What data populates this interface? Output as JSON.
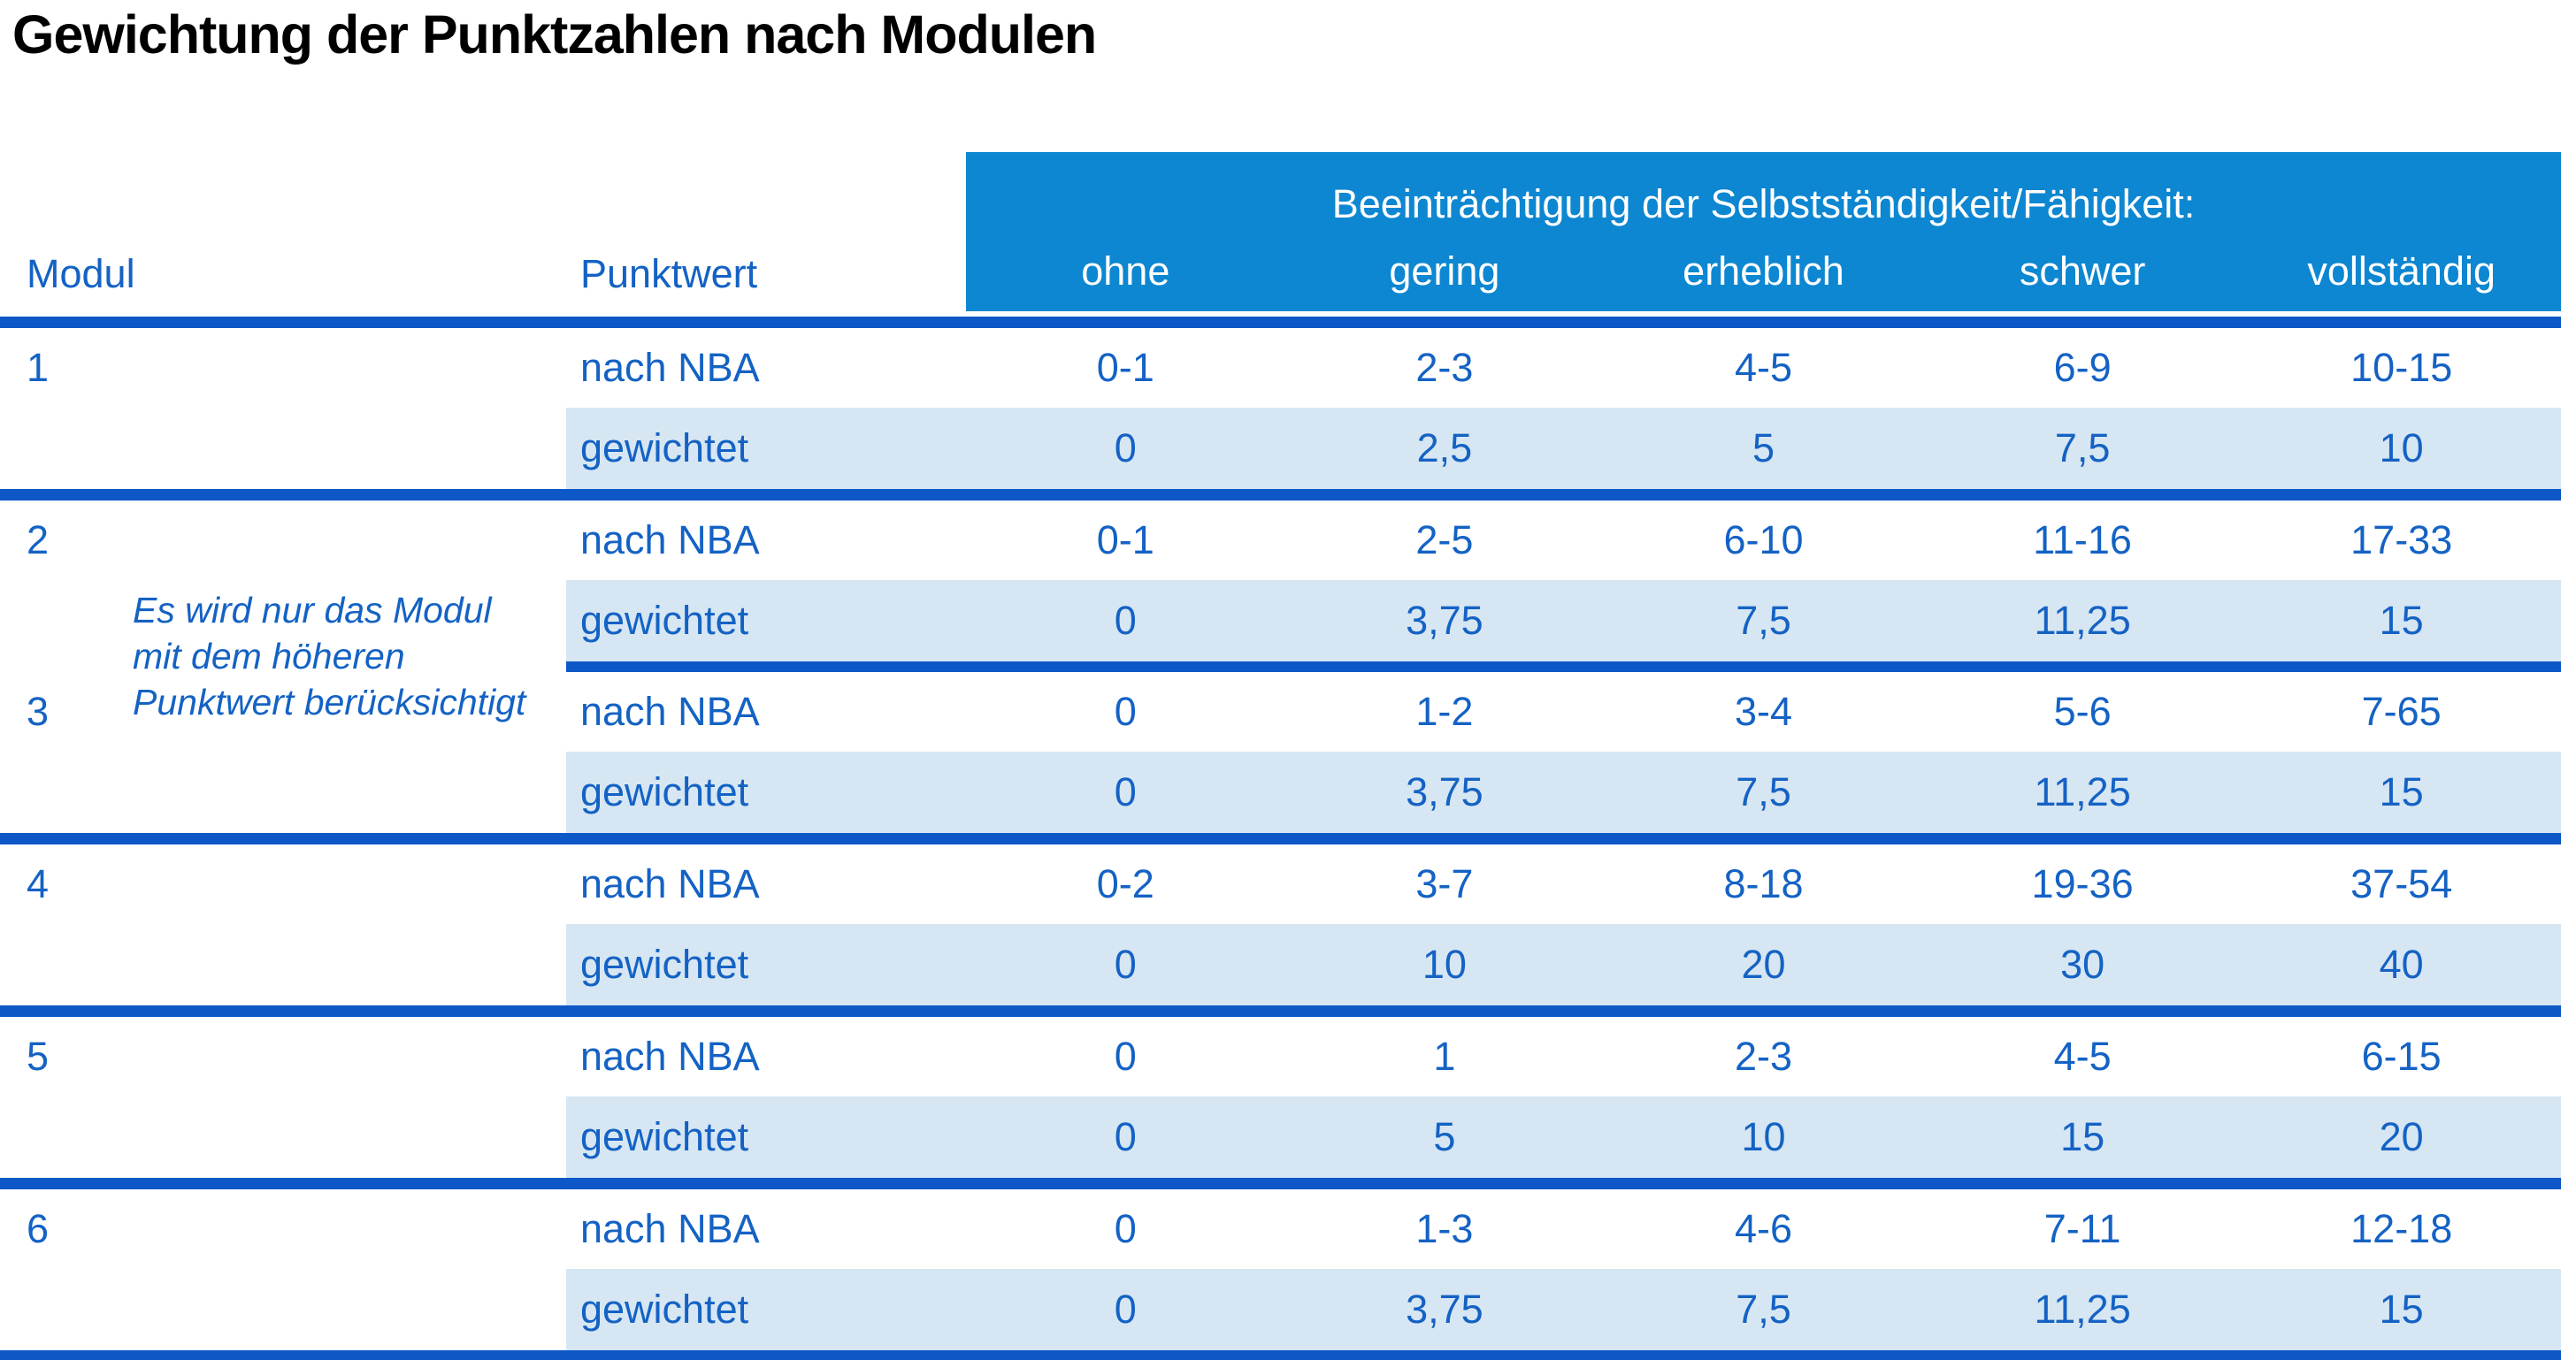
{
  "title": "Gewichtung der Punktzahlen nach Modulen",
  "table": {
    "col_headers": {
      "modul": "Modul",
      "punktwert": "Punktwert"
    },
    "impairment_header": "Beeinträchtigung der Selbstständigkeit/Fähigkeit:",
    "severity_levels": [
      "ohne",
      "gering",
      "erheblich",
      "schwer",
      "vollständig"
    ],
    "row_labels": {
      "nba": "nach NBA",
      "weighted": "gewichtet"
    },
    "note": {
      "lines": [
        "Es wird nur das Modul",
        "mit dem höheren",
        "Punktwert berücksichtigt"
      ]
    },
    "modules": [
      {
        "number": "1",
        "nach_nba": [
          "0-1",
          "2-3",
          "4-5",
          "6-9",
          "10-15"
        ],
        "gewichtet": [
          "0",
          "2,5",
          "5",
          "7,5",
          "10"
        ]
      },
      {
        "number": "2",
        "nach_nba": [
          "0-1",
          "2-5",
          "6-10",
          "11-16",
          "17-33"
        ],
        "gewichtet": [
          "0",
          "3,75",
          "7,5",
          "11,25",
          "15"
        ]
      },
      {
        "number": "3",
        "nach_nba": [
          "0",
          "1-2",
          "3-4",
          "5-6",
          "7-65"
        ],
        "gewichtet": [
          "0",
          "3,75",
          "7,5",
          "11,25",
          "15"
        ]
      },
      {
        "number": "4",
        "nach_nba": [
          "0-2",
          "3-7",
          "8-18",
          "19-36",
          "37-54"
        ],
        "gewichtet": [
          "0",
          "10",
          "20",
          "30",
          "40"
        ]
      },
      {
        "number": "5",
        "nach_nba": [
          "0",
          "1",
          "2-3",
          "4-5",
          "6-15"
        ],
        "gewichtet": [
          "0",
          "5",
          "10",
          "15",
          "20"
        ]
      },
      {
        "number": "6",
        "nach_nba": [
          "0",
          "1-3",
          "4-6",
          "7-11",
          "12-18"
        ],
        "gewichtet": [
          "0",
          "3,75",
          "7,5",
          "11,25",
          "15"
        ]
      }
    ]
  },
  "colors": {
    "header_band": "#0d87d1",
    "separator_bar": "#0d58c6",
    "row_highlight": "#d6e6f3",
    "text_blue": "#1462c4",
    "title_text": "#000000"
  }
}
